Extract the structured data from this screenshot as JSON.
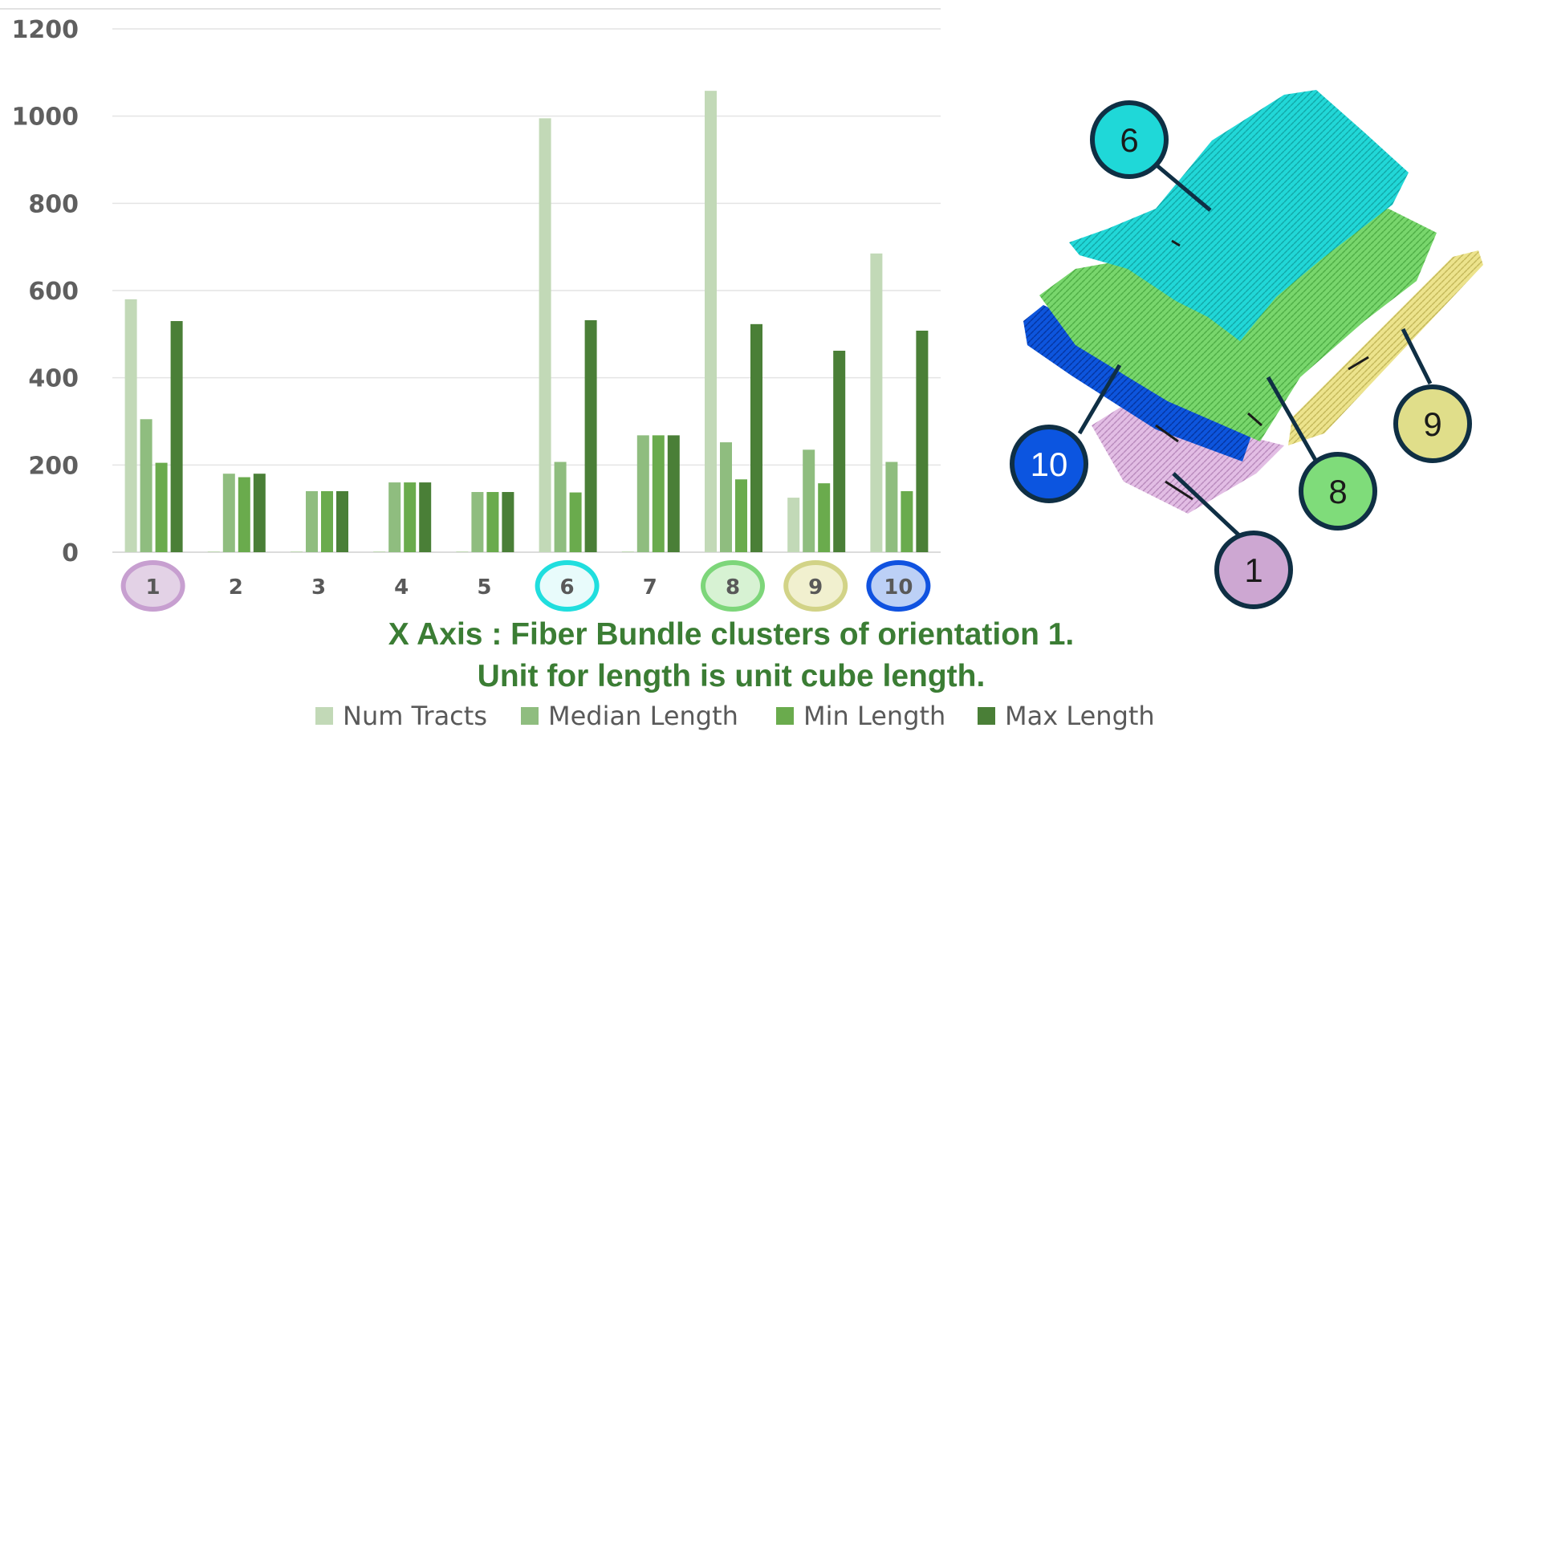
{
  "chart_data": {
    "type": "bar",
    "categories": [
      "1",
      "2",
      "3",
      "4",
      "5",
      "6",
      "7",
      "8",
      "9",
      "10"
    ],
    "series": [
      {
        "name": "Num Tracts",
        "color": "#c2d9b7",
        "values": [
          580,
          2,
          2,
          2,
          2,
          995,
          2,
          1058,
          125,
          685
        ]
      },
      {
        "name": "Median Length",
        "color": "#8fbd7f",
        "values": [
          305,
          180,
          140,
          160,
          138,
          207,
          268,
          252,
          235,
          207
        ]
      },
      {
        "name": "Min Length",
        "color": "#6aab4d",
        "values": [
          205,
          172,
          140,
          160,
          138,
          137,
          268,
          167,
          158,
          140
        ]
      },
      {
        "name": "Max Length",
        "color": "#4a7f37",
        "values": [
          530,
          180,
          140,
          160,
          138,
          532,
          268,
          523,
          462,
          508
        ]
      }
    ],
    "yticks": [
      "0",
      "200",
      "400",
      "600",
      "800",
      "1000",
      "1200"
    ],
    "ylim": [
      0,
      1200
    ],
    "grid": true,
    "legend_position": "bottom",
    "highlighted_categories": [
      {
        "category": "1",
        "fill": "#e3d2e6",
        "stroke": "#c79fd0"
      },
      {
        "category": "6",
        "fill": "#e8fbfb",
        "stroke": "#20dede"
      },
      {
        "category": "8",
        "fill": "#d7f2d3",
        "stroke": "#7dd67a"
      },
      {
        "category": "9",
        "fill": "#f1f0cf",
        "stroke": "#d2d387"
      },
      {
        "category": "10",
        "fill": "#bcd0f6",
        "stroke": "#1052e0"
      }
    ],
    "caption_line1": "X Axis : Fiber Bundle clusters of orientation 1.",
    "caption_line2": "Unit for length is unit cube length."
  },
  "illustration": {
    "callouts": [
      {
        "label": "6",
        "fill": "#1fd8d8",
        "text_color": "#1a1a1a"
      },
      {
        "label": "10",
        "fill": "#0c55e0",
        "text_color": "#ffffff"
      },
      {
        "label": "8",
        "fill": "#7fdc7a",
        "text_color": "#1a1a1a"
      },
      {
        "label": "9",
        "fill": "#e0de8a",
        "text_color": "#1a1a1a"
      },
      {
        "label": "1",
        "fill": "#cda7d2",
        "text_color": "#1a1a1a"
      }
    ],
    "layer_colors": {
      "cluster_6": "#21d7d7",
      "cluster_8": "#78d66c",
      "cluster_9": "#ece38c",
      "cluster_10": "#0d55dd",
      "cluster_1": "#d8a9dc"
    }
  }
}
